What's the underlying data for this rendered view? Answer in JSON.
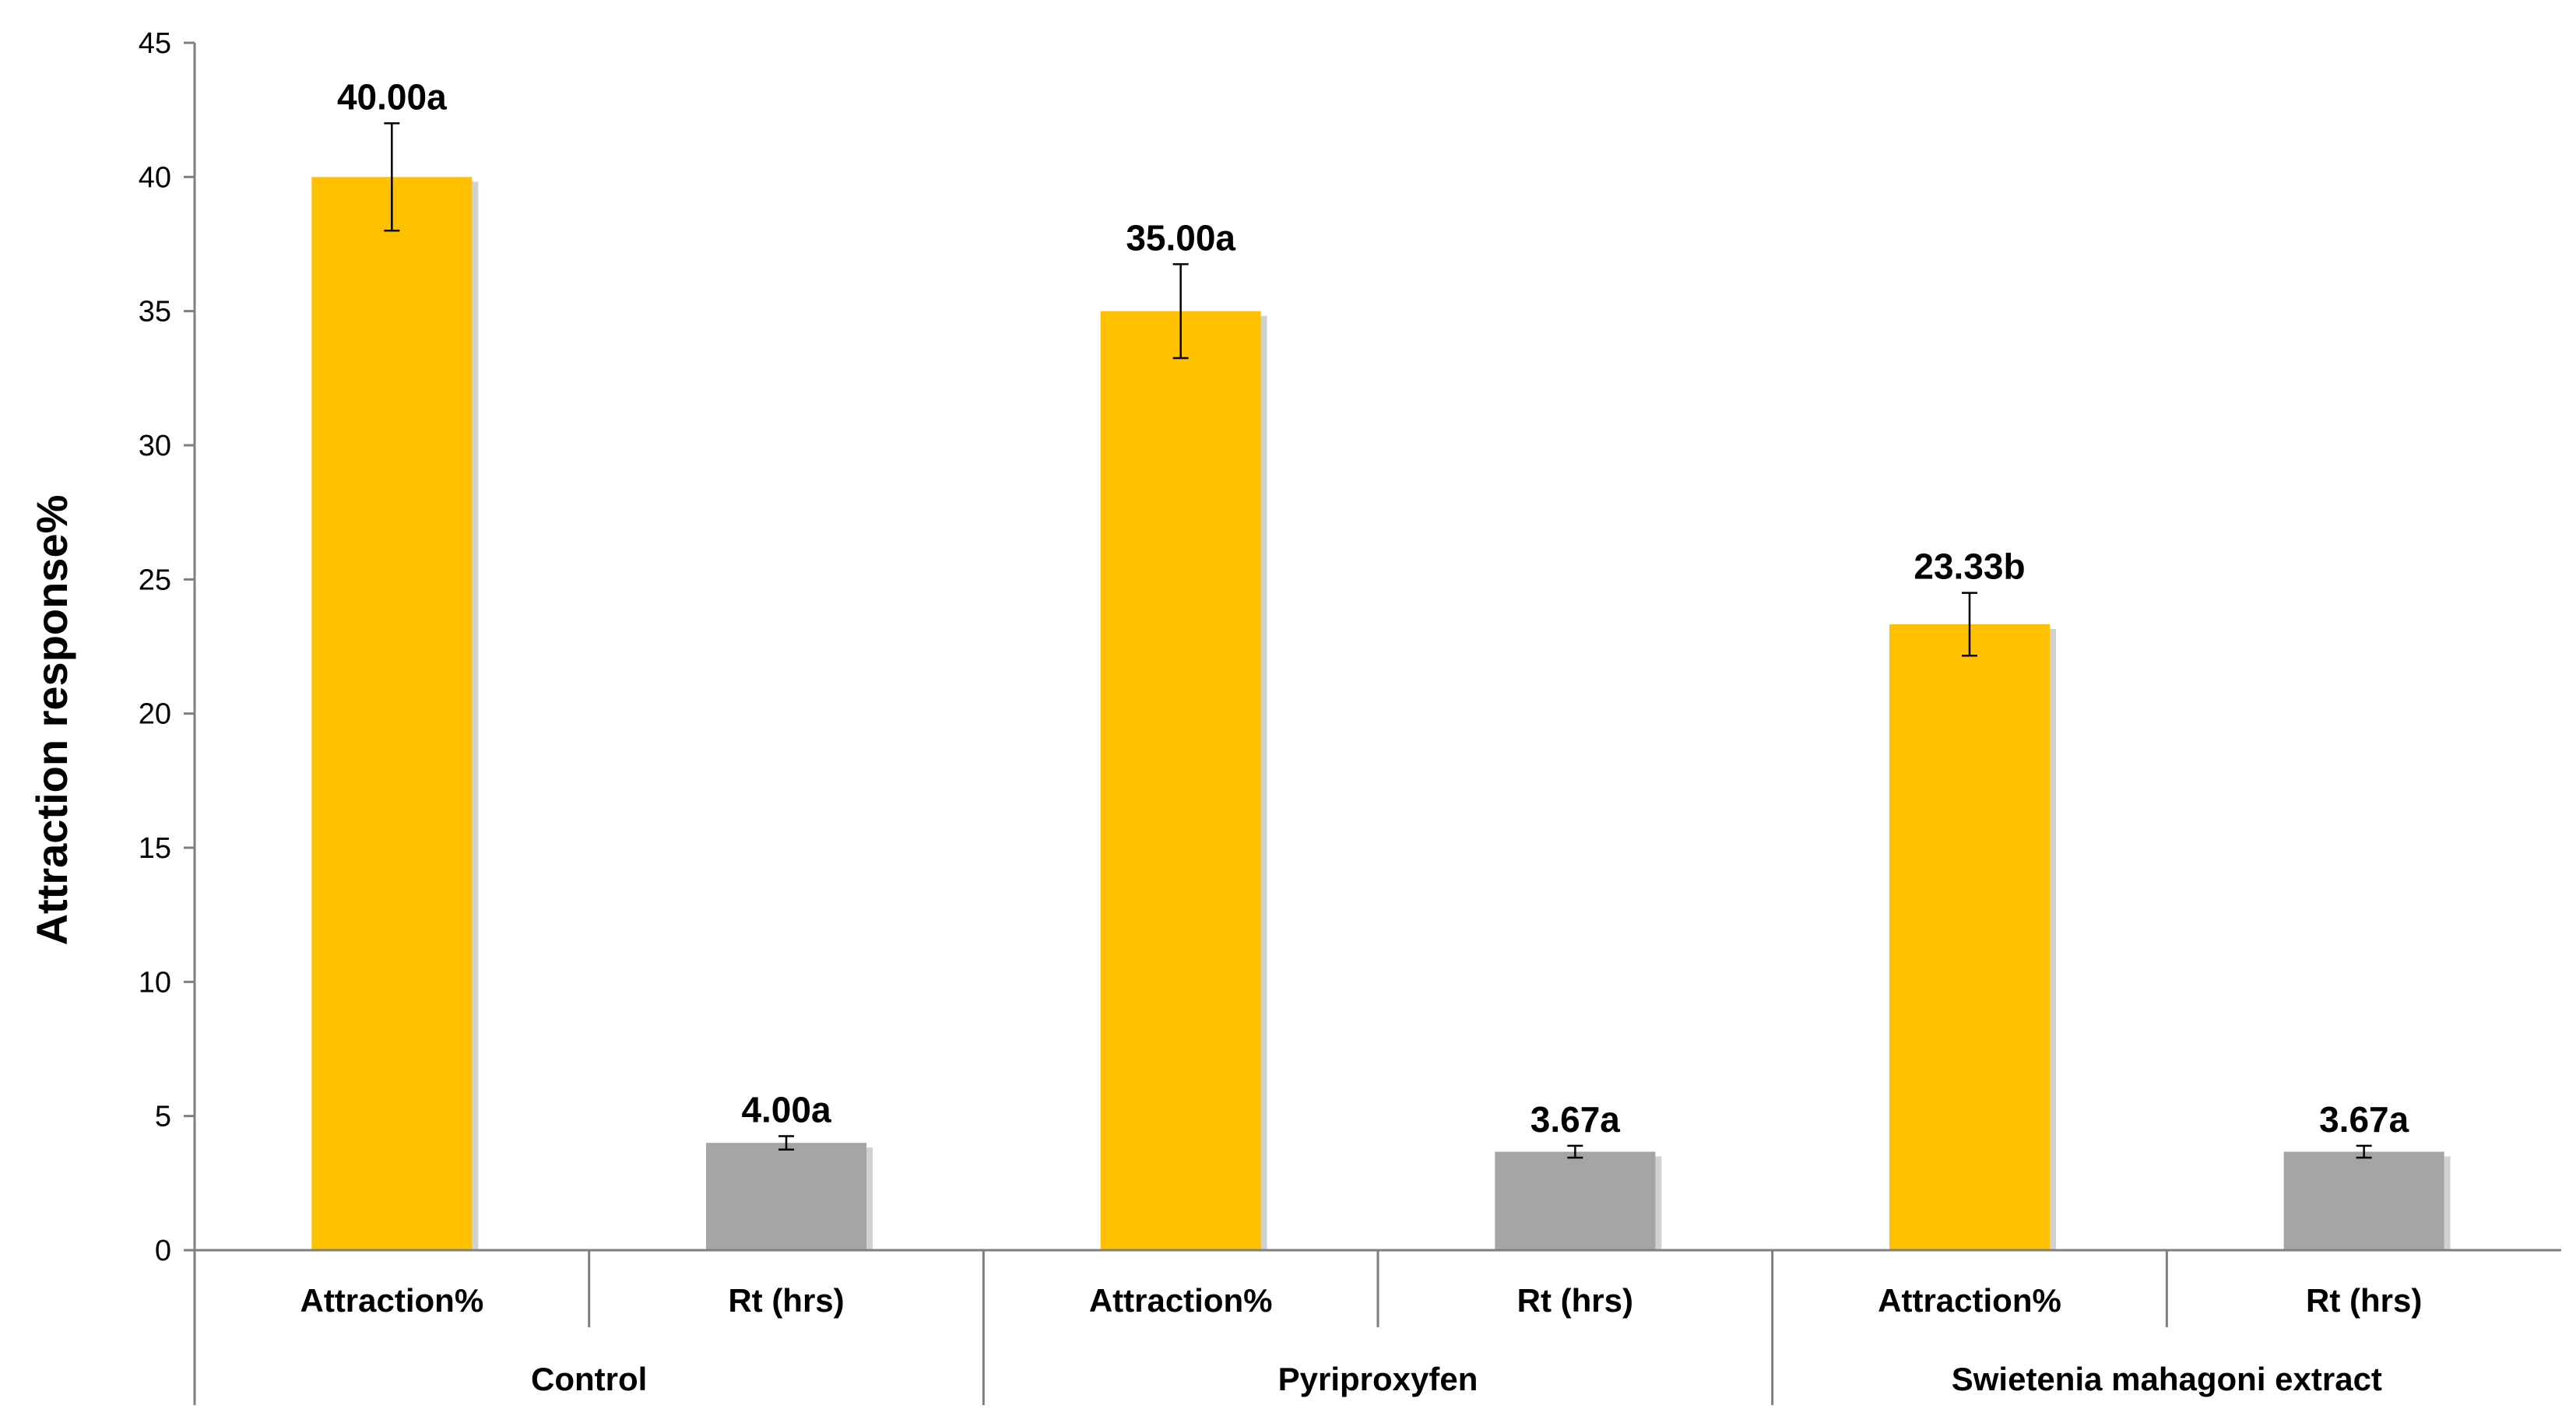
{
  "chart_data": {
    "type": "bar",
    "ylabel": "Attraction response%",
    "xlabel": "",
    "ylim": [
      0,
      45
    ],
    "yticks": [
      0,
      5,
      10,
      15,
      20,
      25,
      30,
      35,
      40,
      45
    ],
    "grid": false,
    "legend": "none",
    "colors": {
      "Attraction%": "#FFC000",
      "Rt (hrs)": "#A5A5A5"
    },
    "groups": [
      {
        "name": "Control",
        "bars": [
          {
            "category": "Attraction%",
            "value": 40.0,
            "error": 2.0,
            "label": "40.00a"
          },
          {
            "category": "Rt (hrs)",
            "value": 4.0,
            "error": 0.25,
            "label": "4.00a"
          }
        ]
      },
      {
        "name": "Pyriproxyfen",
        "bars": [
          {
            "category": "Attraction%",
            "value": 35.0,
            "error": 1.75,
            "label": "35.00a"
          },
          {
            "category": "Rt (hrs)",
            "value": 3.67,
            "error": 0.22,
            "label": "3.67a"
          }
        ]
      },
      {
        "name": "Swietenia mahagoni extract",
        "bars": [
          {
            "category": "Attraction%",
            "value": 23.33,
            "error": 1.17,
            "label": "23.33b"
          },
          {
            "category": "Rt (hrs)",
            "value": 3.67,
            "error": 0.22,
            "label": "3.67a"
          }
        ]
      }
    ]
  }
}
